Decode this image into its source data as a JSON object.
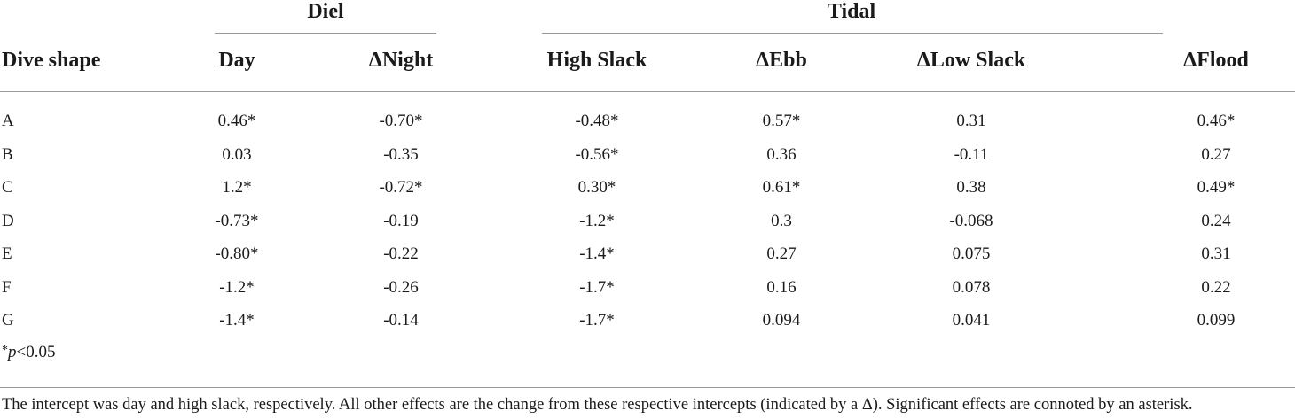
{
  "groups": {
    "diel": "Diel",
    "tidal": "Tidal"
  },
  "columns": {
    "dive_shape": "Dive shape",
    "day": "Day",
    "night": "ΔNight",
    "high_slack": "High Slack",
    "ebb": "ΔEbb",
    "low_slack": "ΔLow Slack",
    "flood": "ΔFlood"
  },
  "rows": [
    {
      "shape": "A",
      "day": "0.46*",
      "night": "-0.70*",
      "high_slack": "-0.48*",
      "ebb": "0.57*",
      "low_slack": "0.31",
      "flood": "0.46*"
    },
    {
      "shape": "B",
      "day": "0.03",
      "night": "-0.35",
      "high_slack": "-0.56*",
      "ebb": "0.36",
      "low_slack": "-0.11",
      "flood": "0.27"
    },
    {
      "shape": "C",
      "day": "1.2*",
      "night": "-0.72*",
      "high_slack": "0.30*",
      "ebb": "0.61*",
      "low_slack": "0.38",
      "flood": "0.49*"
    },
    {
      "shape": "D",
      "day": "-0.73*",
      "night": "-0.19",
      "high_slack": "-1.2*",
      "ebb": "0.3",
      "low_slack": "-0.068",
      "flood": "0.24"
    },
    {
      "shape": "E",
      "day": "-0.80*",
      "night": "-0.22",
      "high_slack": "-1.4*",
      "ebb": "0.27",
      "low_slack": "0.075",
      "flood": "0.31"
    },
    {
      "shape": "F",
      "day": "-1.2*",
      "night": "-0.26",
      "high_slack": "-1.7*",
      "ebb": "0.16",
      "low_slack": "0.078",
      "flood": "0.22"
    },
    {
      "shape": "G",
      "day": "-1.4*",
      "night": "-0.14",
      "high_slack": "-1.7*",
      "ebb": "0.094",
      "low_slack": "0.041",
      "flood": "0.099"
    }
  ],
  "footnote": {
    "star": "*",
    "p": "p",
    "rest": "<0.05"
  },
  "caption": "The intercept was day and high slack, respectively. All other effects are the change from these respective intercepts (indicated by a Δ). Significant effects are connoted by an asterisk."
}
